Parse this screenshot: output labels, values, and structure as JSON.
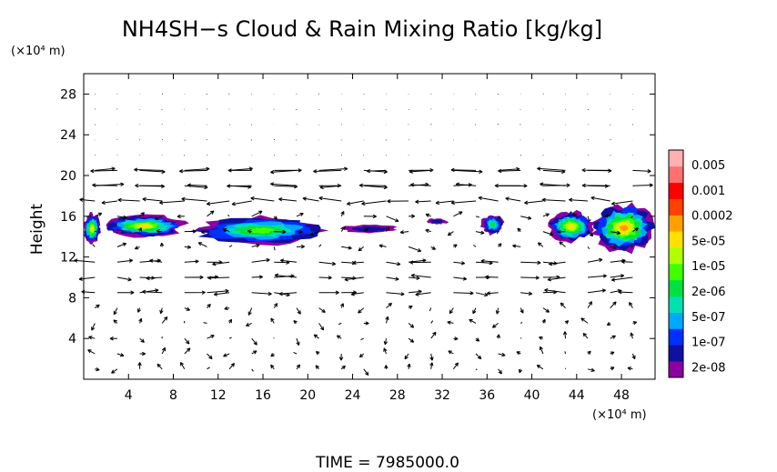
{
  "chart_data": {
    "type": "heatmap",
    "title": "NH4SH−s Cloud & Rain Mixing Ratio [kg/kg]",
    "ylabel": "Height",
    "y_unit": "(×10⁴ m)",
    "x_unit": "(×10⁴ m)",
    "xlim": [
      0,
      51
    ],
    "ylim": [
      0,
      30
    ],
    "xticks": [
      4,
      8,
      12,
      16,
      20,
      24,
      28,
      32,
      36,
      40,
      44,
      48
    ],
    "yticks": [
      4,
      8,
      12,
      16,
      20,
      24,
      28
    ],
    "time_label": "TIME  =  7985000.0",
    "colorbar": {
      "labels": [
        "0.005",
        "0.001",
        "0.0002",
        "5e-05",
        "1e-05",
        "2e-06",
        "5e-07",
        "1e-07",
        "2e-08"
      ],
      "colors": [
        "#8b00a0",
        "#1010a0",
        "#0030ff",
        "#00a8ff",
        "#00e0b0",
        "#00e040",
        "#40ff00",
        "#b0ff00",
        "#ffe000",
        "#ffa000",
        "#ff4000",
        "#ff0000",
        "#ff7070",
        "#ffb0b0"
      ]
    },
    "cloud_regions": [
      {
        "x": [
          0.0,
          1.5
        ],
        "y": [
          13.3,
          16.3
        ],
        "level": "5e-05"
      },
      {
        "x": [
          1.8,
          9.0
        ],
        "y": [
          14.0,
          16.1
        ],
        "level": "5e-05"
      },
      {
        "x": [
          9.5,
          22.0
        ],
        "y": [
          13.2,
          16.0
        ],
        "level": "1e-05"
      },
      {
        "x": [
          23.0,
          28.0
        ],
        "y": [
          14.3,
          15.2
        ],
        "level": "2e-08"
      },
      {
        "x": [
          30.5,
          32.5
        ],
        "y": [
          15.2,
          15.8
        ],
        "level": "2e-08"
      },
      {
        "x": [
          35.5,
          37.5
        ],
        "y": [
          14.2,
          16.2
        ],
        "level": "2e-06"
      },
      {
        "x": [
          41.5,
          45.5
        ],
        "y": [
          13.5,
          16.5
        ],
        "level": "5e-05"
      },
      {
        "x": [
          45.5,
          51.0
        ],
        "y": [
          12.5,
          17.2
        ],
        "level": "0.0002"
      }
    ]
  }
}
